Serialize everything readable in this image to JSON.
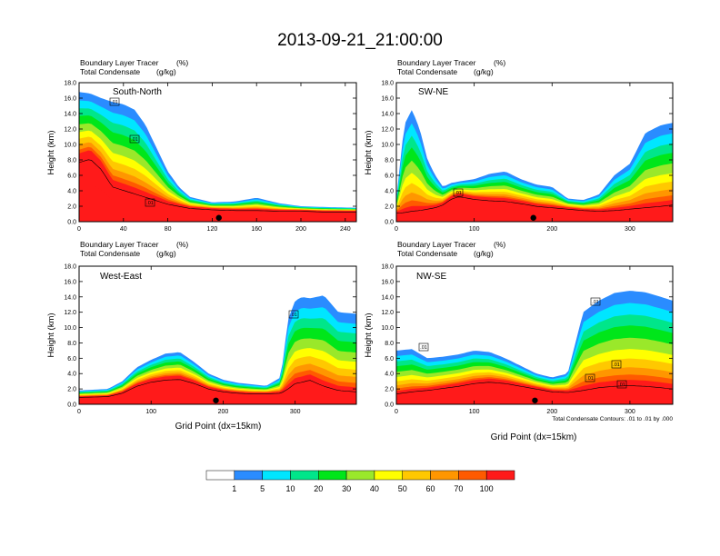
{
  "chart_data": {
    "type": "heatmap",
    "title": "2013-09-21_21:00:00",
    "variable_shaded": "Boundary Layer Tracer",
    "variable_shaded_units": "(%)",
    "variable_contoured": "Total Condensate",
    "variable_contoured_units": "(g/kg)",
    "contour_note": "Total Condensate Contours: .01 to .01 by .000",
    "xlabel": "Grid Point (dx=15km)",
    "ylabel": "Height (km)",
    "y_ticks": [
      "0.0",
      "2.0",
      "4.0",
      "6.0",
      "8.0",
      "10.0",
      "12.0",
      "14.0",
      "16.0",
      "18.0"
    ],
    "ylim": [
      0,
      18
    ],
    "colorbar": {
      "levels": [
        "1",
        "5",
        "10",
        "20",
        "30",
        "40",
        "50",
        "60",
        "70",
        "100"
      ],
      "colors": [
        "#ffffff",
        "#2a8cff",
        "#00e6ff",
        "#00e68a",
        "#00e61a",
        "#9ae82a",
        "#ffff00",
        "#ffc800",
        "#ff9600",
        "#ff5a00",
        "#ff1a1a"
      ]
    },
    "panels": [
      {
        "name": "South-North",
        "xlim": [
          0,
          250
        ],
        "x_ticks": [
          0,
          40,
          80,
          120,
          160,
          200,
          240
        ],
        "marker_x": 126,
        "contour_labels": [
          ".01",
          ".01",
          ".01"
        ],
        "profile": [
          [
            0,
            16.8,
            8.5
          ],
          [
            10,
            16.6,
            9
          ],
          [
            20,
            16,
            7.5
          ],
          [
            30,
            15.5,
            5
          ],
          [
            40,
            15.2,
            4.5
          ],
          [
            50,
            14.5,
            4
          ],
          [
            60,
            12.5,
            3.5
          ],
          [
            70,
            9.5,
            3
          ],
          [
            80,
            6.5,
            2.5
          ],
          [
            90,
            4.5,
            2.2
          ],
          [
            100,
            3.2,
            1.9
          ],
          [
            120,
            2.5,
            1.7
          ],
          [
            140,
            2.6,
            1.6
          ],
          [
            160,
            3.1,
            1.6
          ],
          [
            180,
            2.4,
            1.5
          ],
          [
            200,
            2.0,
            1.5
          ],
          [
            220,
            1.9,
            1.4
          ],
          [
            250,
            1.8,
            1.4
          ]
        ]
      },
      {
        "name": "SW-NE",
        "xlim": [
          0,
          355
        ],
        "x_ticks": [
          0,
          100,
          200,
          300
        ],
        "marker_x": 176,
        "contour_labels": [
          ".01"
        ],
        "profile": [
          [
            0,
            3.0,
            1.2
          ],
          [
            10,
            12.5,
            1.3
          ],
          [
            20,
            14.5,
            1.5
          ],
          [
            30,
            12,
            1.6
          ],
          [
            40,
            8,
            1.8
          ],
          [
            50,
            6,
            2.0
          ],
          [
            60,
            4.5,
            2.4
          ],
          [
            70,
            5,
            3.2
          ],
          [
            80,
            5.2,
            3.6
          ],
          [
            100,
            5.5,
            3.2
          ],
          [
            120,
            6.2,
            3.0
          ],
          [
            140,
            6.5,
            2.9
          ],
          [
            160,
            5.5,
            2.6
          ],
          [
            180,
            4.8,
            2.2
          ],
          [
            200,
            4.5,
            2.0
          ],
          [
            220,
            3.0,
            1.8
          ],
          [
            240,
            2.8,
            1.6
          ],
          [
            260,
            3.5,
            1.5
          ],
          [
            280,
            6.0,
            1.6
          ],
          [
            300,
            7.5,
            1.8
          ],
          [
            320,
            11.5,
            2.0
          ],
          [
            340,
            12.5,
            2.2
          ],
          [
            355,
            12.8,
            2.4
          ]
        ]
      },
      {
        "name": "West-East",
        "xlim": [
          0,
          385
        ],
        "x_ticks": [
          0,
          100,
          200,
          300
        ],
        "marker_x": 190,
        "contour_labels": [
          ".01"
        ],
        "profile": [
          [
            0,
            1.8,
            1.0
          ],
          [
            40,
            2.0,
            1.1
          ],
          [
            60,
            3.0,
            1.6
          ],
          [
            80,
            4.8,
            2.6
          ],
          [
            100,
            5.8,
            3.2
          ],
          [
            120,
            6.6,
            3.5
          ],
          [
            140,
            6.8,
            3.6
          ],
          [
            160,
            5.5,
            3.0
          ],
          [
            180,
            4.0,
            2.2
          ],
          [
            200,
            3.2,
            1.8
          ],
          [
            220,
            2.8,
            1.6
          ],
          [
            240,
            2.6,
            1.5
          ],
          [
            260,
            2.4,
            1.5
          ],
          [
            280,
            3.5,
            1.6
          ],
          [
            290,
            11,
            2.2
          ],
          [
            300,
            13.5,
            3.0
          ],
          [
            310,
            14.0,
            3.2
          ],
          [
            320,
            13.8,
            3.5
          ],
          [
            340,
            14.2,
            2.6
          ],
          [
            360,
            12.0,
            2.0
          ],
          [
            385,
            11.8,
            1.8
          ]
        ]
      },
      {
        "name": "NW-SE",
        "xlim": [
          0,
          355
        ],
        "x_ticks": [
          0,
          100,
          200,
          300
        ],
        "marker_x": 178,
        "contour_labels": [
          ".01",
          ".01",
          ".01",
          ".01",
          ".01"
        ],
        "profile": [
          [
            0,
            7.0,
            1.5
          ],
          [
            20,
            7.2,
            1.8
          ],
          [
            40,
            6.0,
            2.0
          ],
          [
            60,
            6.2,
            2.3
          ],
          [
            80,
            6.5,
            2.6
          ],
          [
            100,
            7.0,
            3.0
          ],
          [
            120,
            6.8,
            3.2
          ],
          [
            140,
            6.0,
            3.0
          ],
          [
            160,
            5.0,
            2.6
          ],
          [
            180,
            4.0,
            2.2
          ],
          [
            200,
            3.5,
            1.8
          ],
          [
            220,
            4.0,
            1.7
          ],
          [
            240,
            12.0,
            2.0
          ],
          [
            260,
            13.5,
            2.4
          ],
          [
            280,
            14.5,
            2.6
          ],
          [
            300,
            14.8,
            2.7
          ],
          [
            320,
            14.6,
            2.6
          ],
          [
            340,
            14.0,
            2.4
          ],
          [
            355,
            13.5,
            2.2
          ]
        ]
      }
    ]
  }
}
